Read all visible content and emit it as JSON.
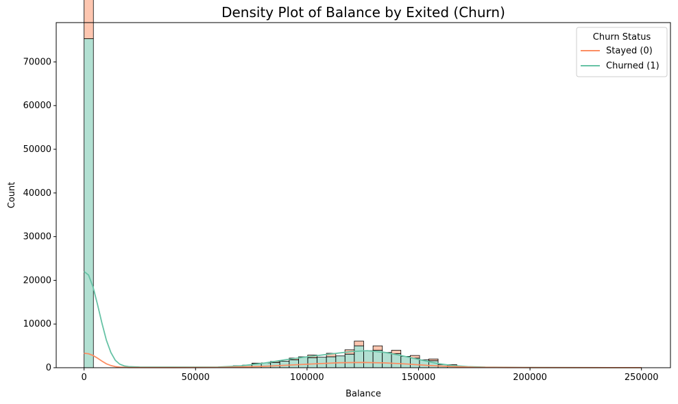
{
  "chart_data": {
    "type": "histogram",
    "title": "Density Plot of Balance by Exited (Churn)",
    "xlabel": "Balance",
    "ylabel": "Count",
    "xlim": [
      -12500,
      263000
    ],
    "ylim": [
      0,
      79000
    ],
    "xticks": [
      0,
      50000,
      100000,
      150000,
      200000,
      250000
    ],
    "yticks": [
      0,
      10000,
      20000,
      30000,
      40000,
      50000,
      60000,
      70000
    ],
    "bin_width": 4180,
    "grid": false,
    "legend": {
      "title": "Churn Status",
      "placement": "top-right"
    },
    "series": [
      {
        "name": "Churned (1)",
        "color": "#66c2a5",
        "bins": [
          [
            0,
            75300
          ],
          [
            66900,
            450
          ],
          [
            71100,
            600
          ],
          [
            75300,
            900
          ],
          [
            79500,
            1100
          ],
          [
            83600,
            1200
          ],
          [
            87800,
            1500
          ],
          [
            92000,
            1800
          ],
          [
            96200,
            2500
          ],
          [
            100300,
            2300
          ],
          [
            104500,
            2400
          ],
          [
            108700,
            2500
          ],
          [
            112900,
            2700
          ],
          [
            117000,
            3100
          ],
          [
            121200,
            5000
          ],
          [
            125400,
            3900
          ],
          [
            129600,
            4000
          ],
          [
            133700,
            3500
          ],
          [
            137900,
            3200
          ],
          [
            142100,
            2600
          ],
          [
            146300,
            2200
          ],
          [
            150400,
            1800
          ],
          [
            154600,
            1600
          ],
          [
            158800,
            700
          ],
          [
            163000,
            500
          ],
          [
            167100,
            300
          ]
        ],
        "kde": [
          [
            0,
            22000
          ],
          [
            2000,
            21200
          ],
          [
            4000,
            18500
          ],
          [
            6000,
            14500
          ],
          [
            8000,
            10200
          ],
          [
            10000,
            6300
          ],
          [
            12000,
            3500
          ],
          [
            14000,
            1700
          ],
          [
            16000,
            800
          ],
          [
            18000,
            400
          ],
          [
            20000,
            250
          ],
          [
            25000,
            150
          ],
          [
            40000,
            120
          ],
          [
            60000,
            150
          ],
          [
            70000,
            400
          ],
          [
            80000,
            1000
          ],
          [
            90000,
            1800
          ],
          [
            100000,
            2500
          ],
          [
            110000,
            3100
          ],
          [
            120000,
            3700
          ],
          [
            127000,
            3900
          ],
          [
            135000,
            3500
          ],
          [
            142000,
            2800
          ],
          [
            150000,
            1900
          ],
          [
            158000,
            1000
          ],
          [
            165000,
            500
          ],
          [
            172000,
            250
          ],
          [
            180000,
            120
          ],
          [
            200000,
            50
          ],
          [
            250000,
            20
          ]
        ]
      },
      {
        "name": "Stayed (0)",
        "color": "#fc8d62",
        "bins": [
          [
            0,
            14600
          ],
          [
            75300,
            150
          ],
          [
            83600,
            250
          ],
          [
            92000,
            400
          ],
          [
            100300,
            600
          ],
          [
            108700,
            800
          ],
          [
            117000,
            1000
          ],
          [
            121200,
            1100
          ],
          [
            129600,
            1000
          ],
          [
            137900,
            800
          ],
          [
            146300,
            600
          ],
          [
            154600,
            400
          ],
          [
            163000,
            200
          ]
        ],
        "kde": [
          [
            0,
            3300
          ],
          [
            2000,
            3200
          ],
          [
            4000,
            2800
          ],
          [
            6000,
            2200
          ],
          [
            8000,
            1500
          ],
          [
            10000,
            900
          ],
          [
            12000,
            500
          ],
          [
            14000,
            250
          ],
          [
            16000,
            120
          ],
          [
            20000,
            50
          ],
          [
            40000,
            30
          ],
          [
            60000,
            60
          ],
          [
            80000,
            300
          ],
          [
            100000,
            800
          ],
          [
            115000,
            1150
          ],
          [
            125000,
            1200
          ],
          [
            135000,
            1100
          ],
          [
            145000,
            850
          ],
          [
            155000,
            500
          ],
          [
            165000,
            250
          ],
          [
            175000,
            100
          ],
          [
            190000,
            40
          ],
          [
            250000,
            10
          ]
        ]
      }
    ]
  }
}
